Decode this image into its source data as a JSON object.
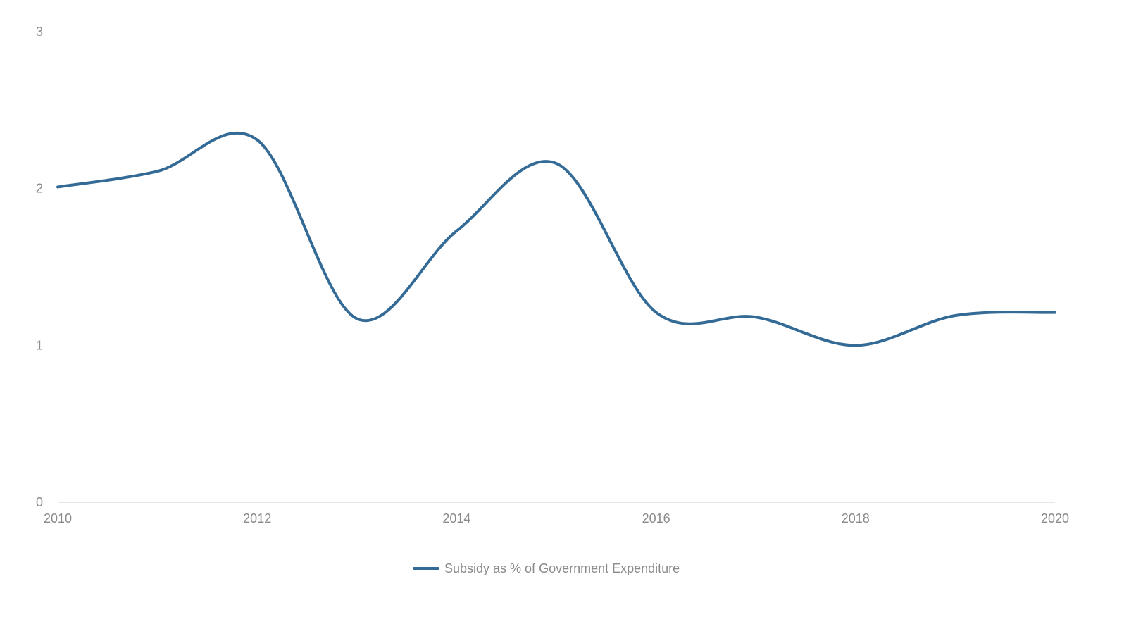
{
  "chart_data": {
    "type": "line",
    "title": "",
    "xlabel": "",
    "ylabel": "",
    "x": [
      2010,
      2011,
      2012,
      2013,
      2014,
      2015,
      2016,
      2017,
      2018,
      2019,
      2020
    ],
    "xlim": [
      2010,
      2020
    ],
    "ylim": [
      0,
      3
    ],
    "x_ticks": [
      "2010",
      "2012",
      "2014",
      "2016",
      "2018",
      "2020"
    ],
    "x_tick_values": [
      2010,
      2012,
      2014,
      2016,
      2018,
      2020
    ],
    "y_ticks": [
      "0",
      "1",
      "2",
      "3"
    ],
    "y_tick_values": [
      0,
      1,
      2,
      3
    ],
    "grid": false,
    "legend_position": "bottom-center",
    "series": [
      {
        "name": "Subsidy as % of Government Expenditure",
        "color": "#346b96",
        "values": [
          2.01,
          2.11,
          2.31,
          1.17,
          1.73,
          2.16,
          1.21,
          1.18,
          1.0,
          1.19,
          1.21
        ]
      }
    ]
  }
}
